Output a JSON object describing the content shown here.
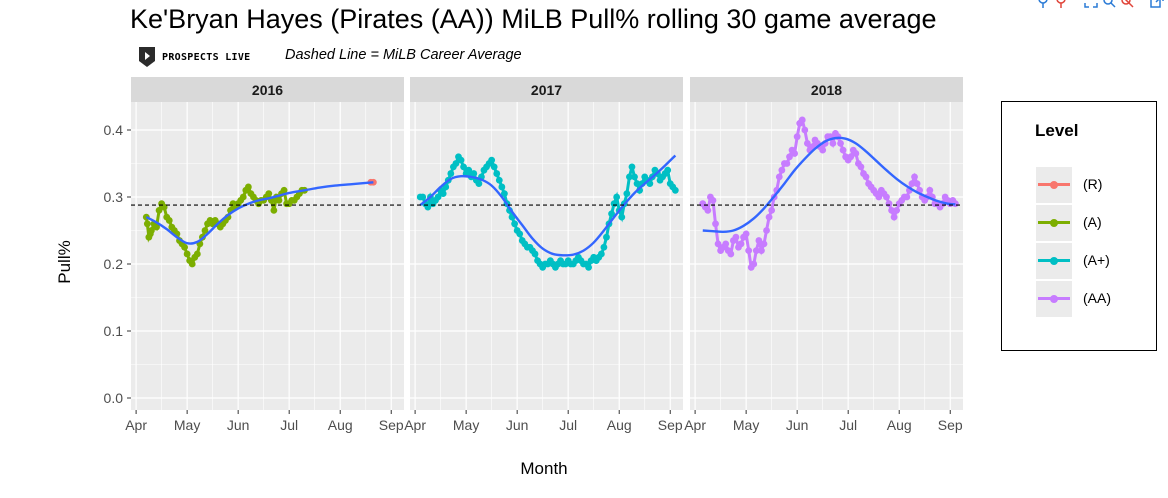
{
  "title": "Ke'Bryan Hayes (Pirates (AA)) MiLB Pull% rolling 30 game average",
  "subtitle": "Dashed Line = MiLB Career Average",
  "logo_text": "PROSPECTS LIVE",
  "toolbar_icons": [
    "pin-icon",
    "pin-icon",
    "expand-icon",
    "zoom-icon",
    "cancel-icon",
    "export-icon"
  ],
  "colors": {
    "R": "#F8766D",
    "A": "#7CAE00",
    "A+": "#00BFC4",
    "AA": "#C77CFF",
    "smooth": "#3366FF",
    "panel": "#EBEBEB",
    "strip": "#D9D9D9"
  },
  "legend": {
    "title": "Level",
    "items": [
      {
        "key": "R",
        "label": "(R)"
      },
      {
        "key": "A",
        "label": "(A)"
      },
      {
        "key": "A+",
        "label": "(A+)"
      },
      {
        "key": "AA",
        "label": "(AA)"
      }
    ]
  },
  "chart_data": {
    "type": "line",
    "title": "Ke'Bryan Hayes (Pirates (AA)) MiLB Pull% rolling 30 game average",
    "subtitle": "Dashed Line = MiLB Career Average",
    "xlabel": "Month",
    "ylabel": "Pull%",
    "ylim": [
      0,
      0.4
    ],
    "yticks": [
      0.0,
      0.1,
      0.2,
      0.3,
      0.4
    ],
    "ytick_labels": [
      "0.0",
      "0.1",
      "0.2",
      "0.3",
      "0.4"
    ],
    "xticks": [
      1,
      2,
      3,
      4,
      5,
      6
    ],
    "xtick_labels": [
      "Apr",
      "May",
      "Jun",
      "Jul",
      "Aug",
      "Sep"
    ],
    "xlim": [
      0.9,
      6.25
    ],
    "career_average": 0.288,
    "grid": true,
    "legend_position": "right",
    "panels": [
      {
        "name": "2016",
        "series": [
          {
            "level": "A",
            "x": [
              1.2,
              1.22,
              1.25,
              1.28,
              1.3,
              1.35,
              1.4,
              1.45,
              1.5,
              1.55,
              1.6,
              1.65,
              1.7,
              1.75,
              1.8,
              1.85,
              1.9,
              1.95,
              2.0,
              2.05,
              2.1,
              2.15,
              2.2,
              2.25,
              2.3,
              2.35,
              2.4,
              2.45,
              2.5,
              2.55,
              2.6,
              2.65,
              2.7,
              2.75,
              2.8,
              2.85,
              2.9,
              2.95,
              3.0,
              3.05,
              3.1,
              3.15,
              3.2,
              3.25,
              3.3,
              3.35,
              3.4,
              3.45,
              3.5,
              3.55,
              3.6,
              3.65,
              3.7,
              3.75,
              3.8,
              3.85,
              3.9,
              3.95,
              4.0,
              4.05,
              4.1,
              4.15,
              4.2,
              4.25,
              4.3
            ],
            "y": [
              0.27,
              0.26,
              0.24,
              0.245,
              0.25,
              0.26,
              0.255,
              0.28,
              0.29,
              0.285,
              0.27,
              0.265,
              0.255,
              0.25,
              0.245,
              0.235,
              0.23,
              0.225,
              0.215,
              0.205,
              0.2,
              0.21,
              0.215,
              0.23,
              0.24,
              0.25,
              0.26,
              0.265,
              0.26,
              0.265,
              0.26,
              0.255,
              0.26,
              0.265,
              0.27,
              0.28,
              0.29,
              0.285,
              0.29,
              0.295,
              0.3,
              0.31,
              0.315,
              0.305,
              0.3,
              0.295,
              0.29,
              0.295,
              0.295,
              0.3,
              0.305,
              0.295,
              0.28,
              0.3,
              0.295,
              0.305,
              0.31,
              0.29,
              0.29,
              0.295,
              0.295,
              0.3,
              0.305,
              0.31,
              0.31
            ]
          },
          {
            "level": "R",
            "x": [
              5.6,
              5.65
            ],
            "y": [
              0.322,
              0.322
            ]
          }
        ],
        "smooth": {
          "x": [
            1.2,
            1.4,
            1.6,
            1.8,
            2.0,
            2.2,
            2.4,
            2.6,
            2.8,
            3.0,
            3.2,
            3.4,
            3.6,
            3.8,
            4.0,
            4.3,
            4.6,
            4.9,
            5.2,
            5.5,
            5.65
          ],
          "y": [
            0.27,
            0.262,
            0.252,
            0.24,
            0.231,
            0.233,
            0.245,
            0.26,
            0.273,
            0.283,
            0.29,
            0.295,
            0.298,
            0.302,
            0.306,
            0.31,
            0.314,
            0.317,
            0.319,
            0.321,
            0.322
          ]
        }
      },
      {
        "name": "2017",
        "series": [
          {
            "level": "A+",
            "x": [
              1.1,
              1.15,
              1.2,
              1.25,
              1.3,
              1.35,
              1.4,
              1.45,
              1.5,
              1.55,
              1.6,
              1.65,
              1.7,
              1.75,
              1.8,
              1.85,
              1.9,
              1.95,
              2.0,
              2.05,
              2.1,
              2.15,
              2.2,
              2.25,
              2.3,
              2.35,
              2.4,
              2.45,
              2.5,
              2.55,
              2.6,
              2.65,
              2.7,
              2.75,
              2.8,
              2.85,
              2.9,
              2.95,
              3.0,
              3.05,
              3.1,
              3.15,
              3.2,
              3.25,
              3.3,
              3.35,
              3.4,
              3.45,
              3.5,
              3.55,
              3.6,
              3.65,
              3.7,
              3.75,
              3.8,
              3.85,
              3.9,
              3.95,
              4.0,
              4.05,
              4.1,
              4.15,
              4.2,
              4.25,
              4.3,
              4.35,
              4.4,
              4.45,
              4.5,
              4.55,
              4.6,
              4.65,
              4.7,
              4.75,
              4.8,
              4.85,
              4.9,
              4.95,
              5.0,
              5.05,
              5.1,
              5.15,
              5.2,
              5.25,
              5.3,
              5.35,
              5.4,
              5.45,
              5.5,
              5.55,
              5.6,
              5.65,
              5.7,
              5.75,
              5.8,
              5.85,
              5.9,
              5.95,
              6.0,
              6.05,
              6.1
            ],
            "y": [
              0.3,
              0.3,
              0.29,
              0.285,
              0.3,
              0.29,
              0.295,
              0.3,
              0.31,
              0.305,
              0.315,
              0.325,
              0.335,
              0.345,
              0.35,
              0.36,
              0.355,
              0.345,
              0.335,
              0.34,
              0.33,
              0.335,
              0.325,
              0.32,
              0.33,
              0.34,
              0.345,
              0.35,
              0.355,
              0.345,
              0.335,
              0.325,
              0.315,
              0.305,
              0.29,
              0.28,
              0.27,
              0.26,
              0.25,
              0.245,
              0.235,
              0.23,
              0.225,
              0.225,
              0.22,
              0.215,
              0.205,
              0.2,
              0.195,
              0.2,
              0.2,
              0.205,
              0.2,
              0.195,
              0.2,
              0.205,
              0.2,
              0.2,
              0.205,
              0.2,
              0.2,
              0.205,
              0.21,
              0.205,
              0.2,
              0.2,
              0.195,
              0.205,
              0.21,
              0.205,
              0.21,
              0.215,
              0.225,
              0.24,
              0.26,
              0.275,
              0.29,
              0.3,
              0.28,
              0.27,
              0.29,
              0.305,
              0.33,
              0.345,
              0.33,
              0.32,
              0.31,
              0.32,
              0.33,
              0.325,
              0.32,
              0.33,
              0.34,
              0.335,
              0.325,
              0.33,
              0.335,
              0.34,
              0.32,
              0.315,
              0.31
            ]
          }
        ],
        "smooth": {
          "x": [
            1.1,
            1.3,
            1.5,
            1.7,
            1.9,
            2.1,
            2.3,
            2.5,
            2.7,
            2.9,
            3.1,
            3.3,
            3.5,
            3.7,
            3.9,
            4.1,
            4.3,
            4.5,
            4.7,
            4.9,
            5.1,
            5.3,
            5.5,
            5.7,
            5.9,
            6.1
          ],
          "y": [
            0.288,
            0.3,
            0.315,
            0.327,
            0.331,
            0.33,
            0.326,
            0.317,
            0.3,
            0.278,
            0.258,
            0.238,
            0.223,
            0.215,
            0.213,
            0.214,
            0.22,
            0.232,
            0.25,
            0.27,
            0.289,
            0.306,
            0.32,
            0.333,
            0.347,
            0.362
          ]
        }
      },
      {
        "name": "2018",
        "series": [
          {
            "level": "AA",
            "x": [
              1.15,
              1.2,
              1.25,
              1.3,
              1.35,
              1.4,
              1.45,
              1.5,
              1.55,
              1.6,
              1.65,
              1.7,
              1.75,
              1.8,
              1.85,
              1.9,
              1.95,
              2.0,
              2.05,
              2.1,
              2.15,
              2.2,
              2.25,
              2.3,
              2.35,
              2.4,
              2.45,
              2.5,
              2.55,
              2.6,
              2.65,
              2.7,
              2.75,
              2.8,
              2.85,
              2.9,
              2.95,
              3.0,
              3.05,
              3.1,
              3.15,
              3.2,
              3.25,
              3.3,
              3.35,
              3.4,
              3.45,
              3.5,
              3.55,
              3.6,
              3.65,
              3.7,
              3.75,
              3.8,
              3.85,
              3.9,
              3.95,
              4.0,
              4.05,
              4.1,
              4.15,
              4.2,
              4.25,
              4.3,
              4.35,
              4.4,
              4.45,
              4.5,
              4.55,
              4.6,
              4.65,
              4.7,
              4.75,
              4.8,
              4.85,
              4.9,
              4.95,
              5.0,
              5.05,
              5.1,
              5.15,
              5.2,
              5.25,
              5.3,
              5.35,
              5.4,
              5.45,
              5.5,
              5.55,
              5.6,
              5.65,
              5.7,
              5.75,
              5.8,
              5.85,
              5.9,
              5.95,
              6.0,
              6.05,
              6.1
            ],
            "y": [
              0.29,
              0.285,
              0.28,
              0.3,
              0.295,
              0.26,
              0.23,
              0.22,
              0.225,
              0.23,
              0.22,
              0.215,
              0.235,
              0.24,
              0.225,
              0.23,
              0.24,
              0.245,
              0.22,
              0.195,
              0.2,
              0.22,
              0.235,
              0.22,
              0.23,
              0.25,
              0.27,
              0.28,
              0.3,
              0.31,
              0.33,
              0.34,
              0.35,
              0.35,
              0.36,
              0.37,
              0.365,
              0.39,
              0.41,
              0.415,
              0.4,
              0.38,
              0.37,
              0.375,
              0.385,
              0.38,
              0.375,
              0.37,
              0.38,
              0.39,
              0.39,
              0.38,
              0.395,
              0.39,
              0.38,
              0.37,
              0.36,
              0.355,
              0.36,
              0.37,
              0.365,
              0.35,
              0.345,
              0.335,
              0.33,
              0.32,
              0.315,
              0.31,
              0.305,
              0.3,
              0.31,
              0.305,
              0.3,
              0.29,
              0.28,
              0.27,
              0.28,
              0.29,
              0.295,
              0.3,
              0.3,
              0.31,
              0.32,
              0.33,
              0.32,
              0.31,
              0.3,
              0.295,
              0.3,
              0.31,
              0.3,
              0.29,
              0.29,
              0.285,
              0.29,
              0.3,
              0.295,
              0.29,
              0.295,
              0.29
            ]
          }
        ],
        "smooth": {
          "x": [
            1.15,
            1.35,
            1.55,
            1.75,
            1.95,
            2.15,
            2.35,
            2.55,
            2.75,
            2.95,
            3.15,
            3.35,
            3.55,
            3.75,
            3.95,
            4.15,
            4.35,
            4.55,
            4.75,
            4.95,
            5.15,
            5.35,
            5.55,
            5.75,
            5.95,
            6.1
          ],
          "y": [
            0.25,
            0.249,
            0.248,
            0.25,
            0.257,
            0.268,
            0.283,
            0.301,
            0.32,
            0.34,
            0.357,
            0.372,
            0.383,
            0.388,
            0.387,
            0.38,
            0.368,
            0.354,
            0.34,
            0.327,
            0.316,
            0.307,
            0.3,
            0.294,
            0.29,
            0.289
          ]
        }
      }
    ]
  }
}
